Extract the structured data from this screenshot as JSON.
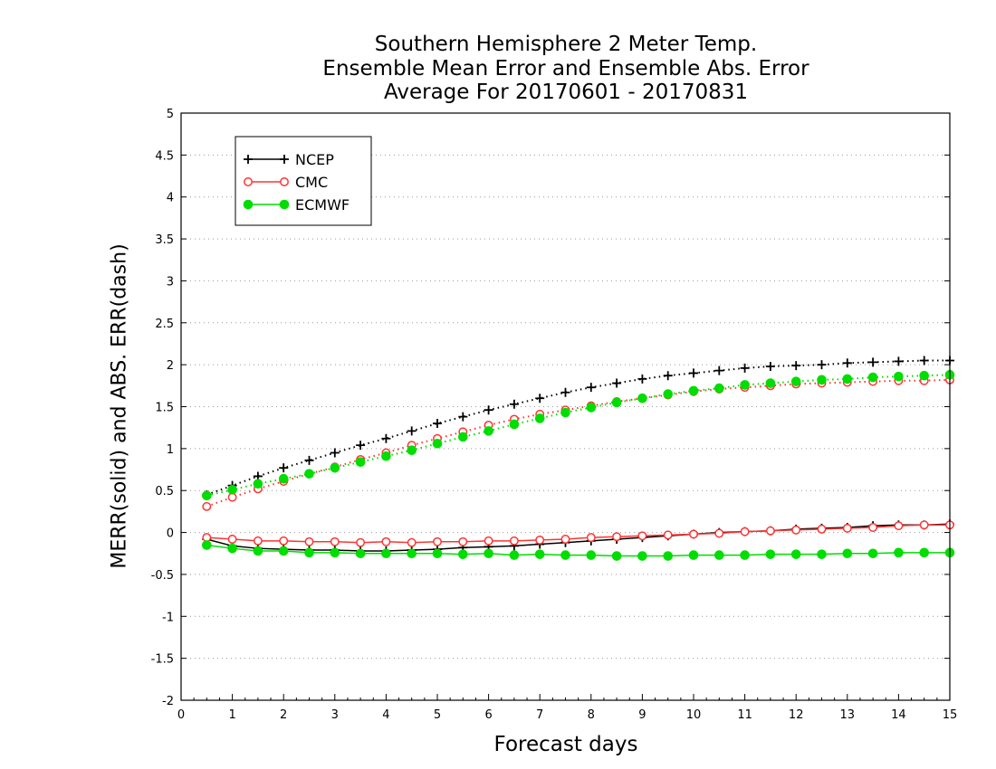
{
  "chart_data": {
    "type": "line",
    "title": [
      "Southern Hemisphere 2 Meter Temp.",
      "Ensemble Mean Error and Ensemble Abs. Error",
      "Average For 20170601 - 20170831"
    ],
    "xlabel": "Forecast days",
    "ylabel": "MERR(solid) and ABS. ERR(dash)",
    "xlim": [
      0,
      15
    ],
    "ylim": [
      -2,
      5
    ],
    "x_ticks": [
      0,
      1,
      2,
      3,
      4,
      5,
      6,
      7,
      8,
      9,
      10,
      11,
      12,
      13,
      14,
      15
    ],
    "y_ticks": [
      -2,
      -1.5,
      -1,
      -0.5,
      0,
      0.5,
      1,
      1.5,
      2,
      2.5,
      3,
      3.5,
      4,
      4.5,
      5
    ],
    "y_tick_labels": [
      "-2",
      "-1.5",
      "-1",
      "-0.5",
      "0",
      "0.5",
      "1",
      "1.5",
      "2",
      "2.5",
      "3",
      "3.5",
      "4",
      "4.5",
      "5"
    ],
    "grid": "horizontal-dotted",
    "legend_position": "top-left",
    "x": [
      0.5,
      1,
      1.5,
      2,
      2.5,
      3,
      3.5,
      4,
      4.5,
      5,
      5.5,
      6,
      6.5,
      7,
      7.5,
      8,
      8.5,
      9,
      9.5,
      10,
      10.5,
      11,
      11.5,
      12,
      12.5,
      13,
      13.5,
      14,
      14.5,
      15
    ],
    "series": [
      {
        "name": "NCEP",
        "color": "#000000",
        "marker": "plus",
        "merr": [
          -0.08,
          -0.16,
          -0.19,
          -0.2,
          -0.21,
          -0.21,
          -0.22,
          -0.22,
          -0.21,
          -0.2,
          -0.18,
          -0.17,
          -0.16,
          -0.14,
          -0.12,
          -0.1,
          -0.08,
          -0.06,
          -0.04,
          -0.02,
          0.0,
          0.01,
          0.02,
          0.04,
          0.05,
          0.06,
          0.08,
          0.09,
          0.09,
          0.1
        ],
        "abs_err": [
          0.45,
          0.56,
          0.67,
          0.77,
          0.86,
          0.95,
          1.04,
          1.12,
          1.21,
          1.3,
          1.38,
          1.46,
          1.53,
          1.6,
          1.67,
          1.73,
          1.78,
          1.83,
          1.87,
          1.9,
          1.93,
          1.96,
          1.98,
          1.99,
          2.0,
          2.02,
          2.03,
          2.04,
          2.05,
          2.05
        ]
      },
      {
        "name": "CMC",
        "color": "#ff3333",
        "marker": "open-circle",
        "merr": [
          -0.06,
          -0.08,
          -0.1,
          -0.1,
          -0.11,
          -0.11,
          -0.12,
          -0.11,
          -0.12,
          -0.11,
          -0.11,
          -0.1,
          -0.1,
          -0.09,
          -0.08,
          -0.06,
          -0.05,
          -0.04,
          -0.03,
          -0.02,
          -0.01,
          0.01,
          0.02,
          0.03,
          0.04,
          0.05,
          0.06,
          0.08,
          0.09,
          0.09
        ],
        "abs_err": [
          0.31,
          0.42,
          0.52,
          0.61,
          0.7,
          0.78,
          0.87,
          0.95,
          1.04,
          1.12,
          1.2,
          1.28,
          1.35,
          1.41,
          1.46,
          1.51,
          1.56,
          1.6,
          1.64,
          1.68,
          1.71,
          1.73,
          1.75,
          1.77,
          1.78,
          1.79,
          1.8,
          1.81,
          1.81,
          1.82
        ]
      },
      {
        "name": "ECMWF",
        "color": "#00dd00",
        "marker": "filled-circle",
        "merr": [
          -0.15,
          -0.19,
          -0.22,
          -0.22,
          -0.24,
          -0.24,
          -0.25,
          -0.25,
          -0.25,
          -0.25,
          -0.26,
          -0.25,
          -0.27,
          -0.26,
          -0.27,
          -0.27,
          -0.28,
          -0.28,
          -0.28,
          -0.27,
          -0.27,
          -0.27,
          -0.26,
          -0.26,
          -0.26,
          -0.25,
          -0.25,
          -0.24,
          -0.24,
          -0.24
        ],
        "abs_err": [
          0.44,
          0.51,
          0.58,
          0.64,
          0.7,
          0.77,
          0.84,
          0.91,
          0.98,
          1.06,
          1.14,
          1.21,
          1.29,
          1.36,
          1.43,
          1.49,
          1.55,
          1.6,
          1.65,
          1.69,
          1.72,
          1.76,
          1.78,
          1.8,
          1.82,
          1.83,
          1.85,
          1.86,
          1.87,
          1.88
        ]
      }
    ]
  }
}
